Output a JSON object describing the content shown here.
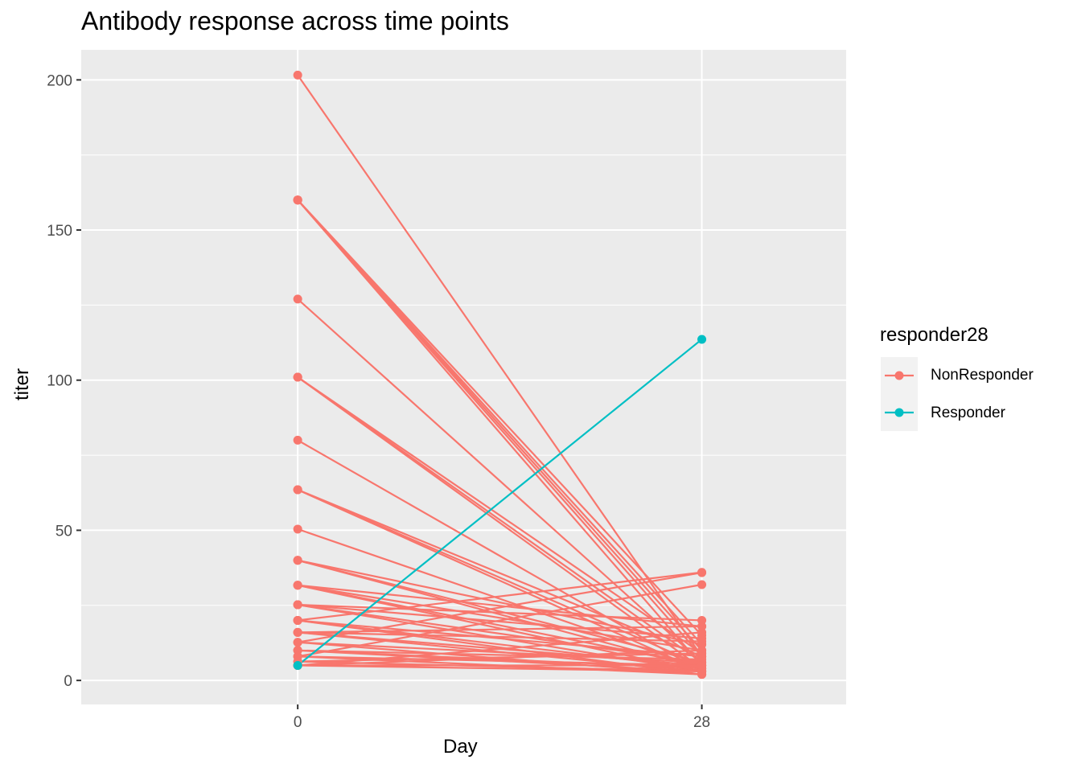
{
  "chart_data": {
    "type": "line",
    "title": "Antibody response across time points",
    "xlabel": "Day",
    "ylabel": "titer",
    "x_ticks": [
      "0",
      "28"
    ],
    "y_ticks": [
      "0",
      "50",
      "100",
      "150",
      "200"
    ],
    "xlim": [
      -15,
      38
    ],
    "ylim": [
      -8,
      210
    ],
    "grid": true,
    "legend": {
      "title": "responder28",
      "placement": "right",
      "entries": [
        {
          "name": "NonResponder",
          "color": "#F8766D"
        },
        {
          "name": "Responder",
          "color": "#00BFC4"
        }
      ]
    },
    "series": [
      {
        "name": "Responder",
        "color": "#00BFC4",
        "pairs": [
          [
            5,
            113.6
          ]
        ]
      },
      {
        "name": "NonResponder",
        "color": "#F8766D",
        "pairs": [
          [
            201.6,
            8
          ],
          [
            160,
            5
          ],
          [
            160,
            8
          ],
          [
            160,
            10
          ],
          [
            160,
            12
          ],
          [
            160,
            15
          ],
          [
            127,
            6
          ],
          [
            101,
            4
          ],
          [
            101,
            6
          ],
          [
            101,
            9
          ],
          [
            80,
            3
          ],
          [
            63.5,
            3
          ],
          [
            63.5,
            5
          ],
          [
            63.5,
            8
          ],
          [
            50.4,
            4
          ],
          [
            40,
            4
          ],
          [
            40,
            6
          ],
          [
            40,
            12
          ],
          [
            31.7,
            3
          ],
          [
            31.7,
            5
          ],
          [
            31.7,
            10
          ],
          [
            31.7,
            18
          ],
          [
            25.2,
            3
          ],
          [
            25.2,
            6
          ],
          [
            25.2,
            14
          ],
          [
            25.2,
            20
          ],
          [
            20,
            2
          ],
          [
            20,
            4
          ],
          [
            20,
            8
          ],
          [
            20,
            36
          ],
          [
            16,
            3
          ],
          [
            16,
            5
          ],
          [
            16,
            13
          ],
          [
            16,
            18
          ],
          [
            12.7,
            2
          ],
          [
            12.7,
            6
          ],
          [
            12.7,
            35.9
          ],
          [
            10,
            3
          ],
          [
            10,
            4
          ],
          [
            10,
            7
          ],
          [
            8,
            2
          ],
          [
            8,
            5
          ],
          [
            8,
            31.9
          ],
          [
            6.3,
            3
          ],
          [
            6.3,
            9
          ],
          [
            5,
            3
          ],
          [
            5,
            5
          ],
          [
            5,
            10
          ],
          [
            5,
            16
          ]
        ]
      }
    ]
  }
}
